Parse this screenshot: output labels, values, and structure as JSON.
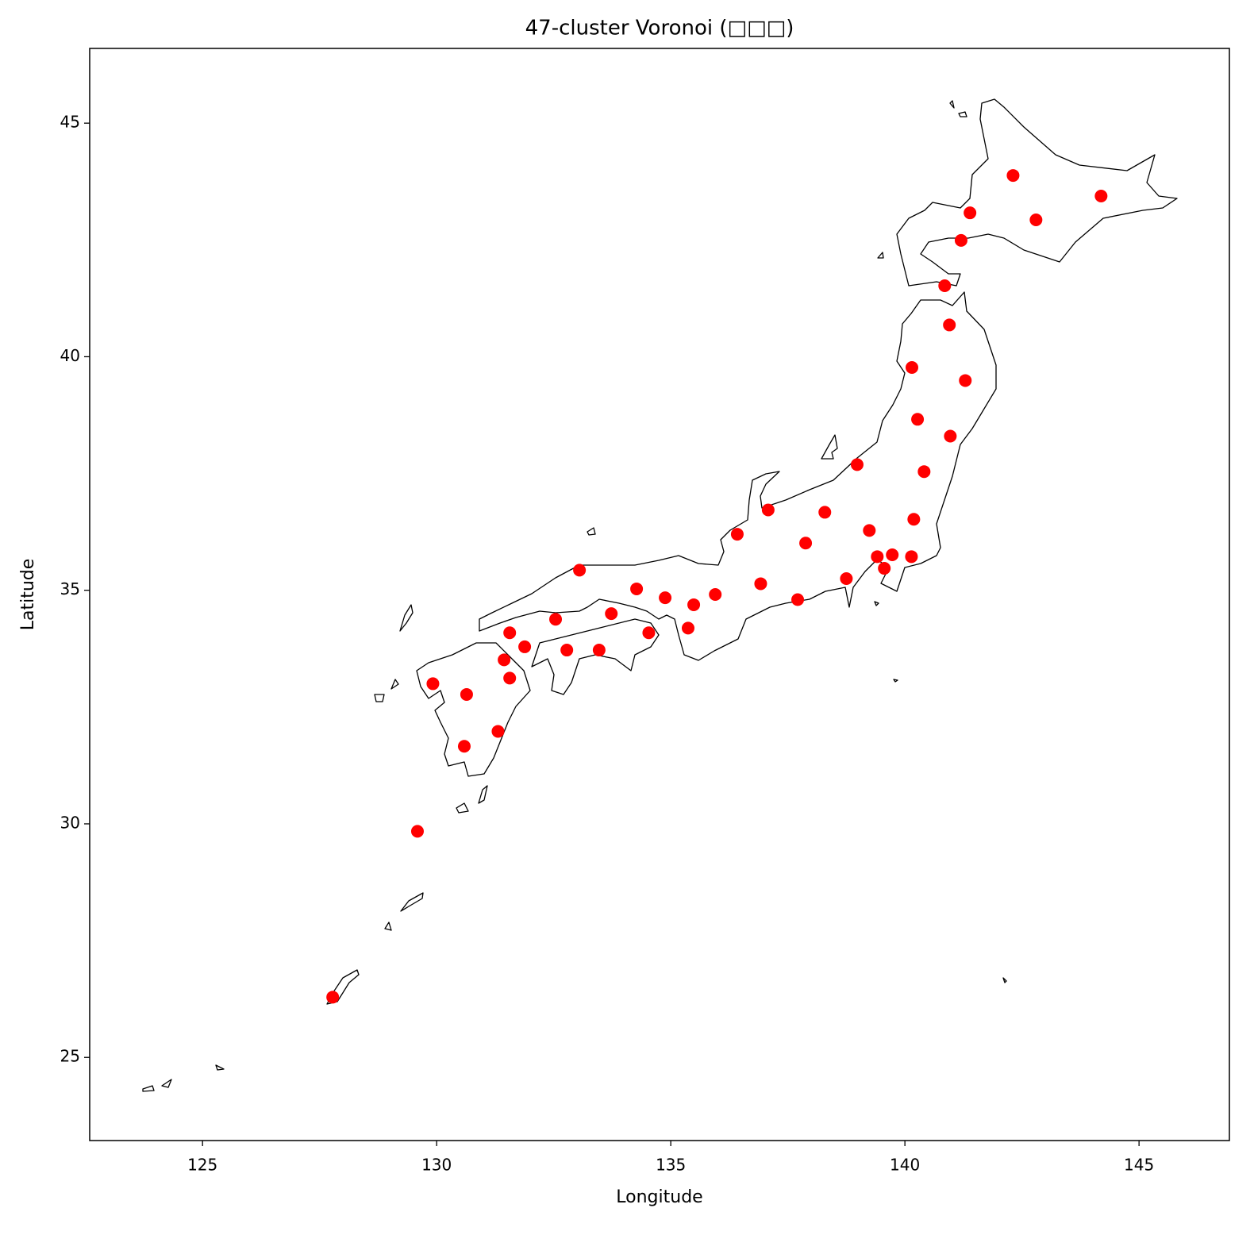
{
  "chart_data": {
    "type": "scatter",
    "title": "47-cluster Voronoi (□□□)",
    "xlabel": "Longitude",
    "ylabel": "Latitude",
    "xlim": [
      122.59,
      146.93
    ],
    "ylim": [
      23.22,
      46.6
    ],
    "xticks": [
      125,
      130,
      135,
      140,
      145
    ],
    "yticks": [
      25,
      30,
      35,
      40,
      45
    ],
    "color": "#ff0000",
    "x": [
      142.31,
      144.19,
      141.39,
      142.8,
      141.2,
      140.85,
      140.95,
      140.15,
      141.29,
      140.27,
      140.97,
      138.98,
      140.41,
      137.08,
      138.29,
      136.42,
      140.19,
      139.24,
      137.88,
      139.41,
      139.73,
      140.14,
      139.56,
      138.75,
      136.92,
      137.71,
      133.05,
      134.27,
      134.88,
      135.95,
      135.49,
      135.37,
      134.53,
      133.73,
      132.54,
      131.56,
      133.47,
      132.78,
      131.88,
      131.44,
      129.92,
      131.56,
      130.64,
      131.31,
      130.59,
      129.59,
      127.78
    ],
    "values": [
      43.88,
      43.44,
      43.08,
      42.93,
      42.49,
      41.52,
      40.68,
      39.77,
      39.49,
      38.66,
      38.3,
      37.69,
      37.54,
      36.72,
      36.67,
      36.2,
      36.52,
      36.28,
      36.01,
      35.72,
      35.76,
      35.72,
      35.47,
      35.25,
      35.14,
      34.8,
      35.43,
      35.03,
      34.84,
      34.91,
      34.69,
      34.19,
      34.09,
      34.5,
      34.38,
      34.09,
      33.72,
      33.72,
      33.79,
      33.51,
      33.0,
      33.12,
      32.77,
      31.98,
      31.66,
      29.84,
      26.29
    ]
  }
}
